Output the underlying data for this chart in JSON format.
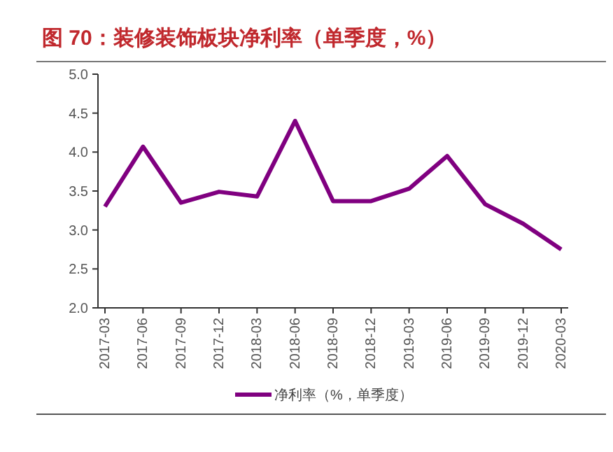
{
  "chart_data": {
    "type": "line",
    "title": "图 70：装修装饰板块净利率（单季度，%）",
    "categories": [
      "2017-03",
      "2017-06",
      "2017-09",
      "2017-12",
      "2018-03",
      "2018-06",
      "2018-09",
      "2018-12",
      "2019-03",
      "2019-06",
      "2019-09",
      "2019-12",
      "2020-03"
    ],
    "series": [
      {
        "name": "净利率（%，单季度）",
        "color": "#800080",
        "values": [
          3.3,
          4.07,
          3.35,
          3.49,
          3.43,
          4.4,
          3.37,
          3.37,
          3.53,
          3.95,
          3.33,
          3.08,
          2.75
        ]
      }
    ],
    "ylim": [
      2.0,
      5.0
    ],
    "yticks": [
      {
        "value": 2,
        "label": "2.0"
      },
      {
        "value": 2.5,
        "label": "2.5"
      },
      {
        "value": 3,
        "label": "3.0"
      },
      {
        "value": 3.5,
        "label": "3.5"
      },
      {
        "value": 4,
        "label": "4.0"
      },
      {
        "value": 4.5,
        "label": "4.5"
      },
      {
        "value": 5,
        "label": "5.0"
      }
    ],
    "grid": false,
    "legend": "bottom",
    "marker": "none",
    "line_style": "solid"
  }
}
